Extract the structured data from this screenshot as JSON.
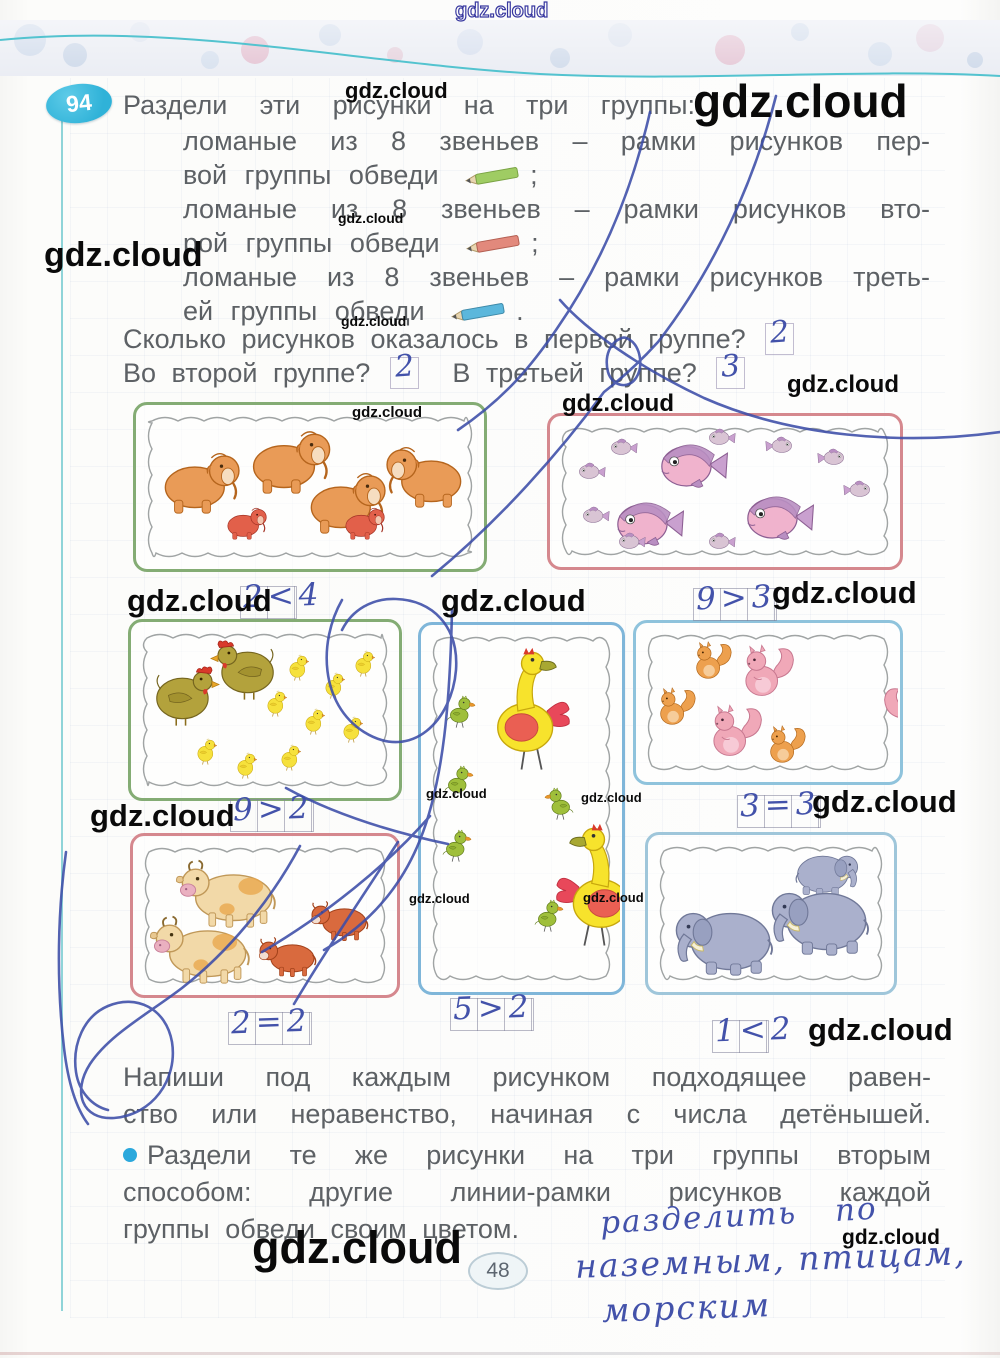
{
  "watermark": "gdz.cloud",
  "page_number": "48",
  "colors": {
    "pencil_green": "#9fcc63",
    "pencil_red": "#e2897c",
    "pencil_blue": "#5bb7dc",
    "pen_ink": "#3c4da8",
    "badge": "#35b6d9"
  },
  "task": {
    "number": "94",
    "intro": "Раздели эти рисунки на три группы:",
    "items": [
      {
        "line1": "ломаные из 8 звеньев – рамки рисунков пер-",
        "line2": "вой группы обведи",
        "pencil": "green",
        "punct": ";"
      },
      {
        "line1": "ломаные из 8 звеньев – рамки рисунков вто-",
        "line2": "рой группы обведи",
        "pencil": "red",
        "punct": ";"
      },
      {
        "line1": "ломаные из 8 звеньев – рамки рисунков треть-",
        "line2": "ей группы обведи",
        "pencil": "blue",
        "punct": "."
      }
    ],
    "question1": "Сколько рисунков оказалось в первой группе?",
    "answer1": "2",
    "question2": "Во второй группе?",
    "answer2": "2",
    "question3": "В третьей группе?",
    "answer3": "3"
  },
  "frames": {
    "mammoths": {
      "animal": "mammoth",
      "border_color": "#84ac74",
      "adults": 4,
      "babies": 2,
      "equation": "2<4"
    },
    "fish": {
      "animal": "fish",
      "border_color": "#d5888e",
      "adults": 3,
      "babies": 9,
      "equation": "9>3"
    },
    "chickens": {
      "animal": "hen-and-chicks",
      "border_color": "#84ac74",
      "adults": 2,
      "babies": 9,
      "equation": "9>2"
    },
    "birds": {
      "animal": "bird",
      "border_color": "#7fb6d9",
      "adults": 2,
      "babies": 5,
      "equation": "5>2"
    },
    "squirrels": {
      "animal": "squirrel",
      "border_color": "#8fc3dc",
      "adults": 3,
      "babies": 3,
      "equation": "3=3"
    },
    "cows": {
      "animal": "cow-and-calves",
      "border_color": "#d5888e",
      "adults": 2,
      "babies": 2,
      "equation": "2=2"
    },
    "elephants": {
      "animal": "elephant",
      "border_color": "#9fc6da",
      "adults": 2,
      "babies": 1,
      "equation": "1<2"
    }
  },
  "bottom": {
    "p1_line1": "Напиши под каждым рисунком подходящее равен-",
    "p1_line2": "ство или неравенство, начиная с числа детёнышей.",
    "p2_line1": "Раздели те же рисунки на три группы вторым",
    "p2_line2": "способом: другие линии-рамки рисунков каждой",
    "p2_line3": "группы обведи своим цветом."
  },
  "handwriting": {
    "note_line1": "разделить по",
    "note_line2": "наземным, птицам,",
    "note_line3": "морским"
  }
}
